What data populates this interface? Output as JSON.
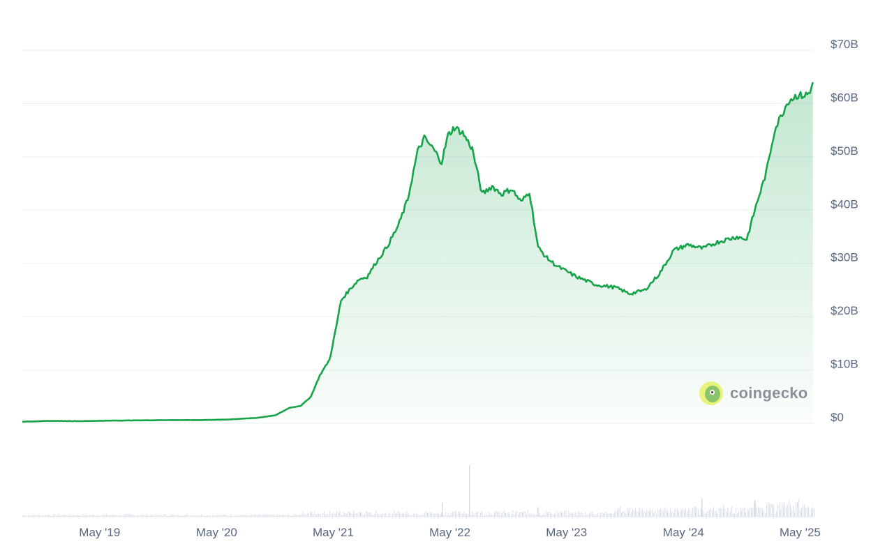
{
  "chart_data": {
    "type": "area",
    "title": "",
    "xlabel": "",
    "ylabel": "",
    "y_unit": "USD",
    "ylim": [
      0,
      70000000000
    ],
    "y_ticks": [
      "$0",
      "$10B",
      "$20B",
      "$30B",
      "$40B",
      "$50B",
      "$60B",
      "$70B"
    ],
    "x_ticks": [
      "May '19",
      "May '20",
      "May '21",
      "May '22",
      "May '23",
      "May '24",
      "May '25"
    ],
    "x_range": [
      "2018-09-01",
      "2025-06-15"
    ],
    "grid": true,
    "series": [
      {
        "values_billions": [
          [
            "2018-09-01",
            0.3
          ],
          [
            "2018-12-01",
            0.45
          ],
          [
            "2019-03-01",
            0.4
          ],
          [
            "2019-06-01",
            0.5
          ],
          [
            "2019-09-01",
            0.55
          ],
          [
            "2019-12-01",
            0.6
          ],
          [
            "2020-03-01",
            0.6
          ],
          [
            "2020-06-01",
            0.7
          ],
          [
            "2020-09-01",
            1.0
          ],
          [
            "2020-11-01",
            1.5
          ],
          [
            "2020-12-15",
            2.9
          ],
          [
            "2021-01-20",
            3.3
          ],
          [
            "2021-02-20",
            5.0
          ],
          [
            "2021-03-20",
            9.0
          ],
          [
            "2021-04-20",
            12.0
          ],
          [
            "2021-05-10",
            18.0
          ],
          [
            "2021-05-25",
            23.0
          ],
          [
            "2021-06-20",
            25.0
          ],
          [
            "2021-07-20",
            27.0
          ],
          [
            "2021-08-15",
            27.5
          ],
          [
            "2021-09-10",
            30.0
          ],
          [
            "2021-10-15",
            33.0
          ],
          [
            "2021-11-20",
            37.0
          ],
          [
            "2021-12-20",
            42.0
          ],
          [
            "2022-01-20",
            51.0
          ],
          [
            "2022-02-10",
            53.5
          ],
          [
            "2022-03-10",
            51.5
          ],
          [
            "2022-04-05",
            49.0
          ],
          [
            "2022-04-25",
            54.0
          ],
          [
            "2022-05-15",
            55.5
          ],
          [
            "2022-06-10",
            54.5
          ],
          [
            "2022-07-10",
            51.5
          ],
          [
            "2022-08-10",
            43.0
          ],
          [
            "2022-09-10",
            44.5
          ],
          [
            "2022-10-10",
            43.0
          ],
          [
            "2022-11-10",
            44.0
          ],
          [
            "2022-12-10",
            41.5
          ],
          [
            "2023-01-05",
            43.5
          ],
          [
            "2023-02-01",
            33.0
          ],
          [
            "2023-03-01",
            31.0
          ],
          [
            "2023-04-01",
            29.5
          ],
          [
            "2023-06-01",
            27.5
          ],
          [
            "2023-08-01",
            26.0
          ],
          [
            "2023-10-01",
            25.5
          ],
          [
            "2023-11-15",
            24.3
          ],
          [
            "2024-01-01",
            25.0
          ],
          [
            "2024-02-15",
            28.0
          ],
          [
            "2024-04-01",
            32.5
          ],
          [
            "2024-05-15",
            33.5
          ],
          [
            "2024-07-01",
            32.8
          ],
          [
            "2024-08-15",
            34.0
          ],
          [
            "2024-10-15",
            35.0
          ],
          [
            "2024-11-15",
            34.5
          ],
          [
            "2024-12-15",
            41.0
          ],
          [
            "2025-01-15",
            47.0
          ],
          [
            "2025-02-10",
            55.0
          ],
          [
            "2025-03-01",
            57.5
          ],
          [
            "2025-03-25",
            60.5
          ],
          [
            "2025-04-20",
            61.5
          ],
          [
            "2025-05-15",
            61.5
          ],
          [
            "2025-06-01",
            62.0
          ],
          [
            "2025-06-10",
            64.0
          ]
        ],
        "color": "#16a34a"
      }
    ],
    "volume_bars_visible": true,
    "colors": {
      "line": "#16a34a",
      "fill_top": "#b9e4c4",
      "grid": "#eef0f3",
      "label": "#58667e"
    }
  },
  "watermark": {
    "text": "coingecko",
    "icon": "coingecko-logo-icon"
  }
}
